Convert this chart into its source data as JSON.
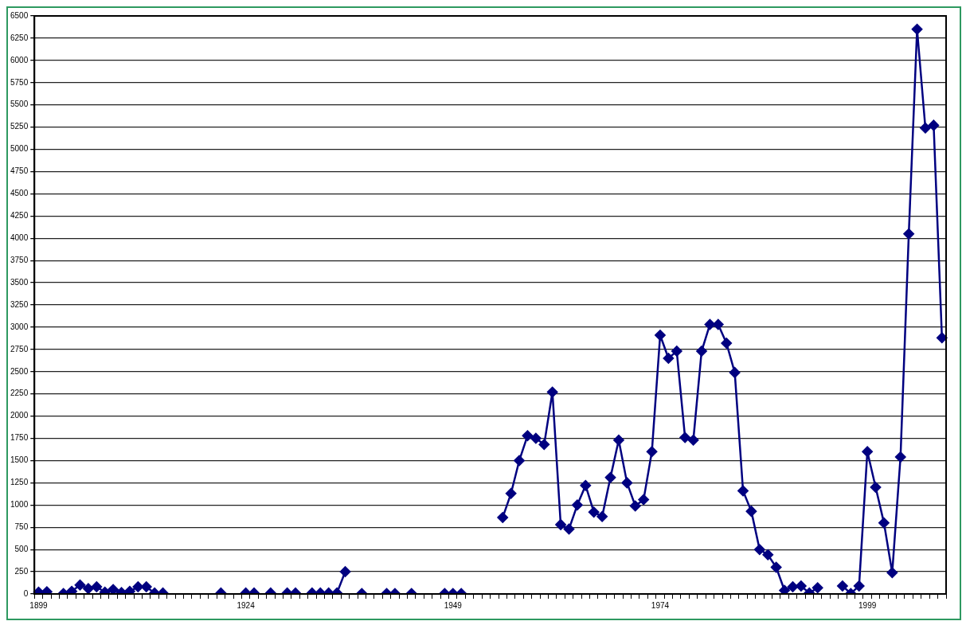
{
  "chart_data": {
    "type": "line",
    "categories": [
      "1899",
      null,
      null,
      null,
      null,
      null,
      null,
      null,
      null,
      null,
      null,
      null,
      null,
      null,
      null,
      null,
      null,
      null,
      null,
      null,
      null,
      null,
      null,
      null,
      null,
      "1924",
      null,
      null,
      null,
      null,
      null,
      null,
      null,
      null,
      null,
      null,
      null,
      null,
      null,
      null,
      null,
      null,
      null,
      null,
      null,
      null,
      null,
      null,
      null,
      null,
      "1949",
      null,
      null,
      null,
      null,
      null,
      null,
      null,
      null,
      null,
      null,
      null,
      null,
      null,
      null,
      null,
      null,
      null,
      null,
      null,
      null,
      null,
      null,
      null,
      null,
      "1974",
      null,
      null,
      null,
      null,
      null,
      null,
      null,
      null,
      null,
      null,
      null,
      null,
      null,
      null,
      null,
      null,
      null,
      null,
      null,
      null,
      null,
      null,
      null,
      null,
      "1999",
      null,
      null,
      null,
      null,
      null,
      null,
      null,
      null,
      null
    ],
    "series": [
      {
        "color": "#000080",
        "values": [
          20,
          25,
          null,
          5,
          30,
          100,
          60,
          80,
          20,
          50,
          15,
          30,
          80,
          80,
          10,
          10,
          null,
          null,
          null,
          null,
          null,
          null,
          10,
          null,
          null,
          10,
          10,
          null,
          10,
          null,
          10,
          10,
          null,
          10,
          10,
          10,
          10,
          250,
          null,
          5,
          null,
          null,
          5,
          5,
          null,
          5,
          null,
          null,
          null,
          5,
          5,
          5,
          null,
          null,
          null,
          null,
          860,
          1130,
          1500,
          1780,
          1750,
          1680,
          2270,
          780,
          730,
          1000,
          1220,
          920,
          870,
          1310,
          1730,
          1250,
          990,
          1060,
          1600,
          2910,
          2650,
          2730,
          1760,
          1730,
          2730,
          3030,
          3030,
          2820,
          2490,
          1160,
          930,
          500,
          440,
          300,
          40,
          80,
          90,
          10,
          70,
          null,
          null,
          90,
          5,
          90,
          1600,
          1200,
          800,
          240,
          1540,
          4050,
          6350,
          5240,
          5270,
          2880
        ]
      }
    ],
    "ylim": [
      0,
      6500
    ],
    "yticks": [
      0,
      250,
      500,
      750,
      1000,
      1250,
      1500,
      1750,
      2000,
      2250,
      2500,
      2750,
      3000,
      3250,
      3500,
      3750,
      4000,
      4250,
      4500,
      4750,
      5000,
      5250,
      5500,
      5750,
      6000,
      6250,
      6500
    ],
    "grid": "y",
    "legend": false,
    "marker": "diamond",
    "line_style": "solid"
  }
}
